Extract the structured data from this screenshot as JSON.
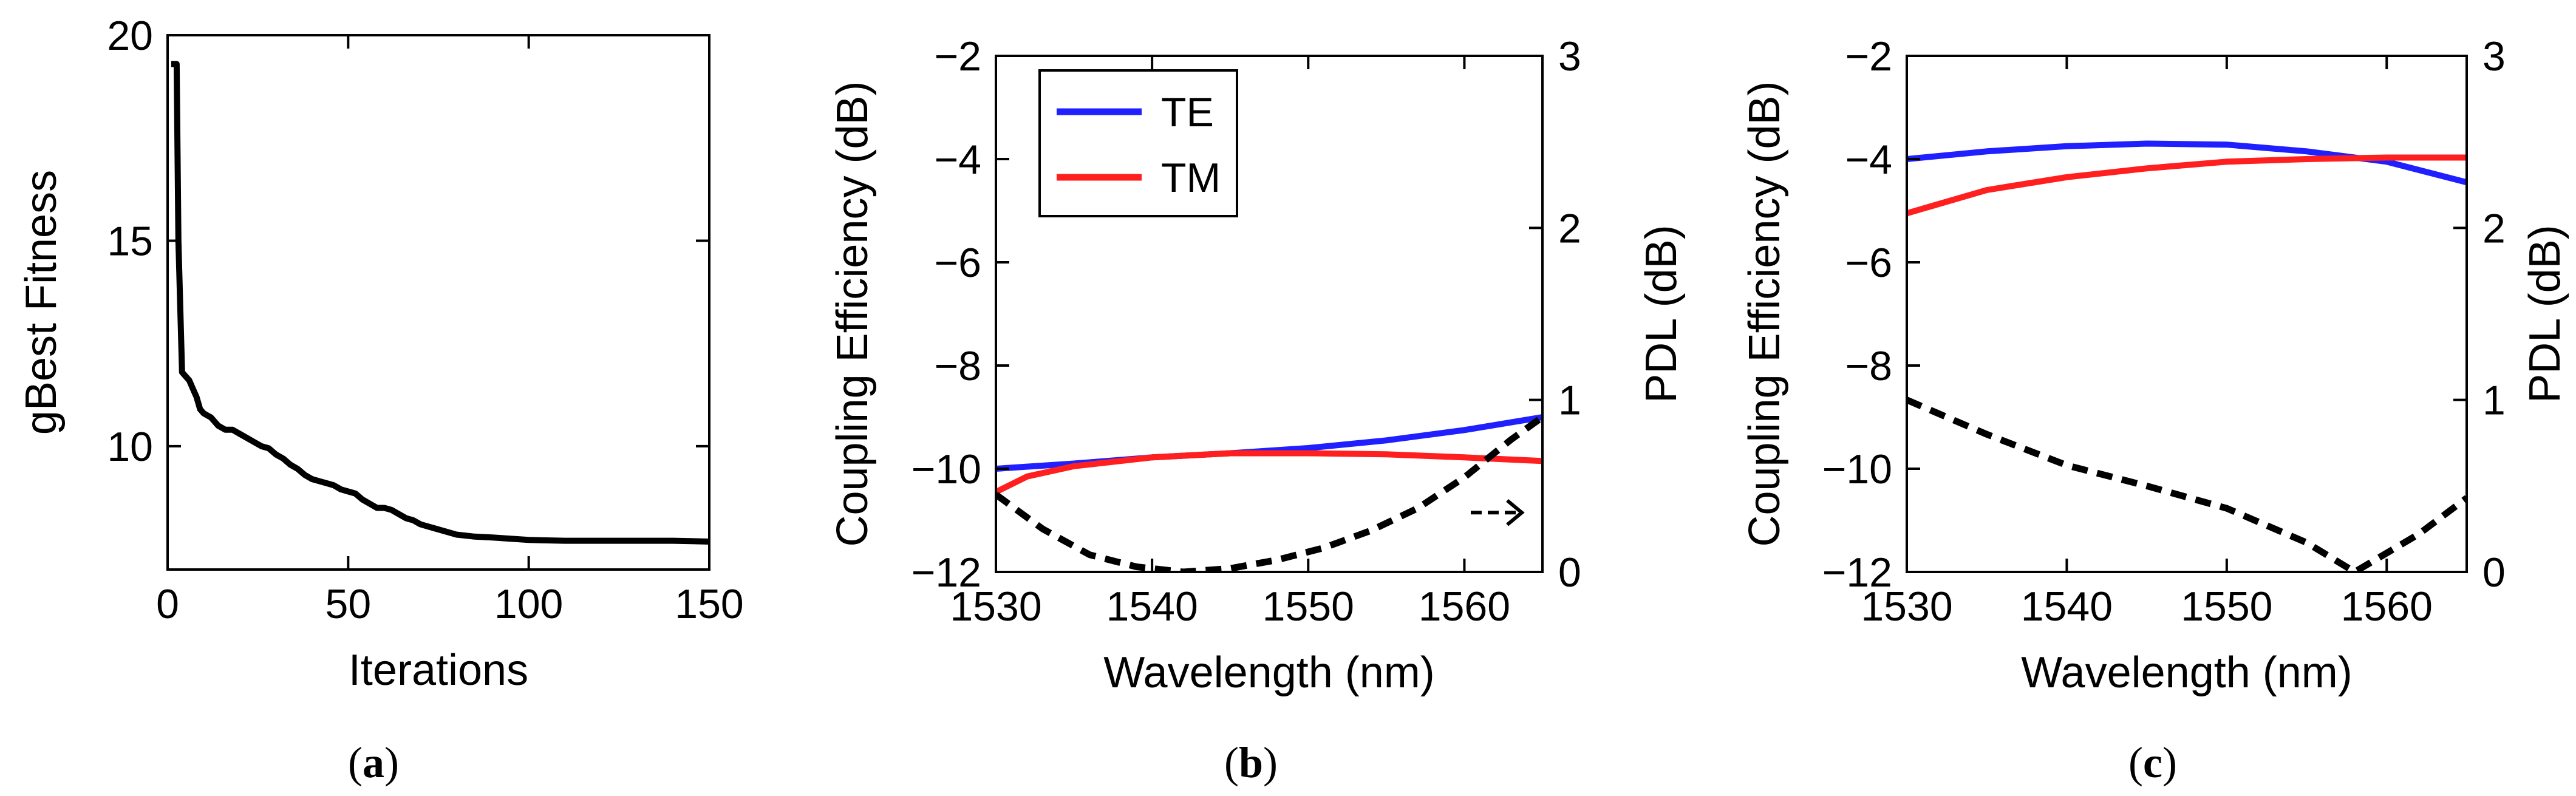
{
  "chart_data": [
    {
      "panel_label": "(a)",
      "type": "line",
      "xlabel": "Iterations",
      "ylabel": "gBest Fitness",
      "xlim": [
        0,
        150
      ],
      "ylim": [
        7,
        20
      ],
      "xticks": [
        0,
        50,
        100,
        150
      ],
      "yticks": [
        10,
        15,
        20
      ],
      "series": [
        {
          "name": "gBest Fitness",
          "color": "#000000",
          "style": "solid",
          "x": [
            1,
            2,
            2.5,
            3,
            4,
            5,
            6,
            7,
            8,
            9,
            10,
            12,
            14,
            16,
            18,
            20,
            22,
            24,
            26,
            28,
            30,
            32,
            34,
            36,
            38,
            40,
            42,
            44,
            46,
            48,
            50,
            52,
            54,
            56,
            58,
            60,
            62,
            64,
            66,
            68,
            70,
            72,
            74,
            76,
            78,
            80,
            85,
            90,
            95,
            100,
            110,
            120,
            130,
            140,
            150
          ],
          "y": [
            19.3,
            19.3,
            19.3,
            15.0,
            11.8,
            11.7,
            11.6,
            11.4,
            11.2,
            10.9,
            10.8,
            10.7,
            10.5,
            10.4,
            10.4,
            10.3,
            10.2,
            10.1,
            10.0,
            9.95,
            9.8,
            9.7,
            9.55,
            9.45,
            9.3,
            9.2,
            9.15,
            9.1,
            9.05,
            8.95,
            8.9,
            8.85,
            8.7,
            8.6,
            8.5,
            8.5,
            8.45,
            8.35,
            8.25,
            8.2,
            8.1,
            8.05,
            8.0,
            7.95,
            7.9,
            7.85,
            7.8,
            7.78,
            7.75,
            7.72,
            7.7,
            7.7,
            7.7,
            7.7,
            7.68
          ]
        }
      ]
    },
    {
      "panel_label": "(b)",
      "type": "line",
      "xlabel": "Wavelength (nm)",
      "ylabel": "Coupling Efficiency (dB)",
      "ylabel_right": "PDL (dB)",
      "xlim": [
        1530,
        1565
      ],
      "ylim": [
        -12,
        -2
      ],
      "ylim_right": [
        0,
        3
      ],
      "xticks": [
        1530,
        1540,
        1550,
        1560
      ],
      "yticks": [
        -12,
        -10,
        -8,
        -6,
        -4,
        -2
      ],
      "yticks_right": [
        0,
        1,
        2,
        3
      ],
      "legend": {
        "placement": "top-left",
        "entries": [
          "TE",
          "TM"
        ]
      },
      "annotation": "arrow pointing right toward PDL axis",
      "series": [
        {
          "name": "TE",
          "color": "#1f1fff",
          "axis": "left",
          "style": "solid",
          "x": [
            1530,
            1535,
            1540,
            1545,
            1550,
            1555,
            1560,
            1565
          ],
          "y": [
            -10.0,
            -9.9,
            -9.78,
            -9.7,
            -9.6,
            -9.45,
            -9.25,
            -9.0
          ]
        },
        {
          "name": "TM",
          "color": "#ff1f1f",
          "axis": "left",
          "style": "solid",
          "x": [
            1530,
            1532,
            1535,
            1540,
            1545,
            1550,
            1555,
            1560,
            1565
          ],
          "y": [
            -10.45,
            -10.15,
            -9.95,
            -9.78,
            -9.7,
            -9.7,
            -9.72,
            -9.78,
            -9.85
          ]
        },
        {
          "name": "PDL",
          "color": "#000000",
          "axis": "right",
          "style": "dashed",
          "x": [
            1530,
            1533,
            1536,
            1539,
            1542,
            1545,
            1548,
            1551,
            1554,
            1557,
            1560,
            1563,
            1565
          ],
          "y": [
            0.45,
            0.25,
            0.1,
            0.03,
            0.0,
            0.02,
            0.07,
            0.14,
            0.24,
            0.37,
            0.55,
            0.77,
            0.9
          ]
        }
      ]
    },
    {
      "panel_label": "(c)",
      "type": "line",
      "xlabel": "Wavelength (nm)",
      "ylabel": "Coupling Efficiency (dB)",
      "ylabel_right": "PDL (dB)",
      "xlim": [
        1530,
        1565
      ],
      "ylim": [
        -12,
        -2
      ],
      "ylim_right": [
        0,
        3
      ],
      "xticks": [
        1530,
        1540,
        1550,
        1560
      ],
      "yticks": [
        -12,
        -10,
        -8,
        -6,
        -4,
        -2
      ],
      "yticks_right": [
        0,
        1,
        2,
        3
      ],
      "series": [
        {
          "name": "TE",
          "color": "#1f1fff",
          "axis": "left",
          "style": "solid",
          "x": [
            1530,
            1535,
            1540,
            1545,
            1550,
            1555,
            1560,
            1565
          ],
          "y": [
            -4.0,
            -3.85,
            -3.75,
            -3.7,
            -3.72,
            -3.85,
            -4.05,
            -4.45
          ]
        },
        {
          "name": "TM",
          "color": "#ff1f1f",
          "axis": "left",
          "style": "solid",
          "x": [
            1530,
            1535,
            1540,
            1545,
            1550,
            1555,
            1560,
            1565
          ],
          "y": [
            -5.05,
            -4.6,
            -4.35,
            -4.18,
            -4.05,
            -4.0,
            -3.97,
            -3.97
          ]
        },
        {
          "name": "PDL",
          "color": "#000000",
          "axis": "right",
          "style": "dashed",
          "x": [
            1530,
            1535,
            1540,
            1545,
            1550,
            1555,
            1558,
            1562,
            1565
          ],
          "y": [
            1.0,
            0.8,
            0.62,
            0.5,
            0.37,
            0.17,
            0.0,
            0.22,
            0.43
          ]
        }
      ]
    }
  ]
}
